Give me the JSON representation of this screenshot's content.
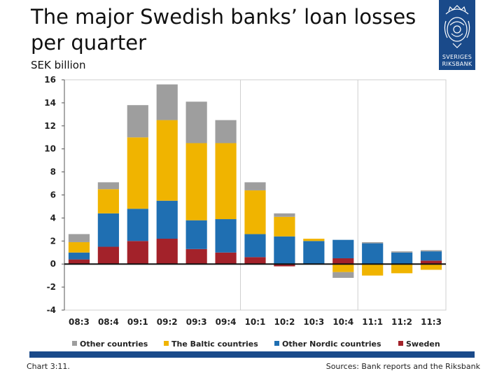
{
  "header": {
    "title": "The major Swedish banks’ loan losses per quarter",
    "unit": "SEK billion"
  },
  "logo": {
    "line1": "SVERIGES",
    "line2": "RIKSBANK",
    "icon": "riksbank-crest-icon"
  },
  "footer": {
    "chart_number": "Chart 3:11.",
    "source": "Sources: Bank reports and the Riksbank"
  },
  "colors": {
    "Sweden": "#a3222a",
    "Other Nordic countries": "#1f6fb2",
    "The Baltic countries": "#f0b400",
    "Other countries": "#9e9e9e"
  },
  "chart_data": {
    "type": "bar",
    "stacked": true,
    "categories": [
      "08:3",
      "08:4",
      "09:1",
      "09:2",
      "09:3",
      "09:4",
      "10:1",
      "10:2",
      "10:3",
      "10:4",
      "11:1",
      "11:2",
      "11:3"
    ],
    "series": [
      {
        "name": "Sweden",
        "values": [
          0.4,
          1.5,
          2.0,
          2.2,
          1.3,
          1.0,
          0.6,
          -0.2,
          0.0,
          0.5,
          0.0,
          0.0,
          0.3
        ]
      },
      {
        "name": "Other Nordic countries",
        "values": [
          0.6,
          2.9,
          2.8,
          3.3,
          2.5,
          2.9,
          2.0,
          2.4,
          2.0,
          1.6,
          1.8,
          1.0,
          0.8
        ]
      },
      {
        "name": "The Baltic countries",
        "values": [
          0.9,
          2.1,
          6.2,
          7.0,
          6.7,
          6.6,
          3.8,
          1.7,
          0.2,
          -0.7,
          -1.0,
          -0.8,
          -0.5
        ]
      },
      {
        "name": "Other countries",
        "values": [
          0.7,
          0.6,
          2.8,
          3.1,
          3.6,
          2.0,
          0.7,
          0.3,
          0.0,
          -0.5,
          0.1,
          0.1,
          0.1
        ]
      }
    ],
    "ylim": [
      -4,
      16
    ],
    "yticks": [
      16,
      14,
      12,
      10,
      8,
      6,
      4,
      2,
      0,
      -2,
      -4
    ],
    "ytick_labels": [
      "16",
      "14",
      "12",
      "10",
      "8",
      "6",
      "4",
      "2",
      "0",
      "-2",
      "-4"
    ],
    "year_separators_after": [
      "09:4",
      "10:4"
    ],
    "legend": [
      "Other countries",
      "The Baltic countries",
      "Other Nordic countries",
      "Sweden"
    ],
    "legend_position": "bottom",
    "grid": false
  }
}
